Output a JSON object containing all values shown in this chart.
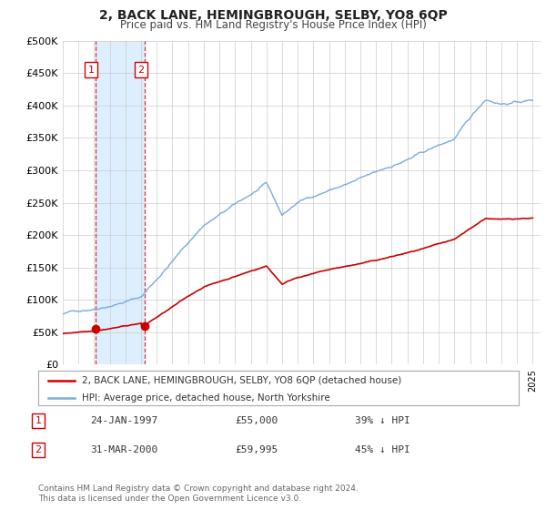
{
  "title": "2, BACK LANE, HEMINGBROUGH, SELBY, YO8 6QP",
  "subtitle": "Price paid vs. HM Land Registry's House Price Index (HPI)",
  "sale_points": [
    {
      "date_num": 1997.07,
      "price": 55000,
      "label": "1"
    },
    {
      "date_num": 2000.25,
      "price": 59995,
      "label": "2"
    }
  ],
  "sale_labels": [
    {
      "date_str": "24-JAN-1997",
      "price_str": "£55,000",
      "pct_str": "39% ↓ HPI"
    },
    {
      "date_str": "31-MAR-2000",
      "price_str": "£59,995",
      "pct_str": "45% ↓ HPI"
    }
  ],
  "legend_entry1": "2, BACK LANE, HEMINGBROUGH, SELBY, YO8 6QP (detached house)",
  "legend_entry2": "HPI: Average price, detached house, North Yorkshire",
  "footer1": "Contains HM Land Registry data © Crown copyright and database right 2024.",
  "footer2": "This data is licensed under the Open Government Licence v3.0.",
  "price_color": "#cc0000",
  "hpi_color": "#7aaadd",
  "highlight_fill": "#ddeeff",
  "grid_color": "#cccccc",
  "bg_color": "#ffffff",
  "ylim": [
    0,
    500000
  ],
  "xlim": [
    1995.0,
    2025.5
  ],
  "yticks": [
    0,
    50000,
    100000,
    150000,
    200000,
    250000,
    300000,
    350000,
    400000,
    450000,
    500000
  ],
  "ytick_labels": [
    "£0",
    "£50K",
    "£100K",
    "£150K",
    "£200K",
    "£250K",
    "£300K",
    "£350K",
    "£400K",
    "£450K",
    "£500K"
  ]
}
